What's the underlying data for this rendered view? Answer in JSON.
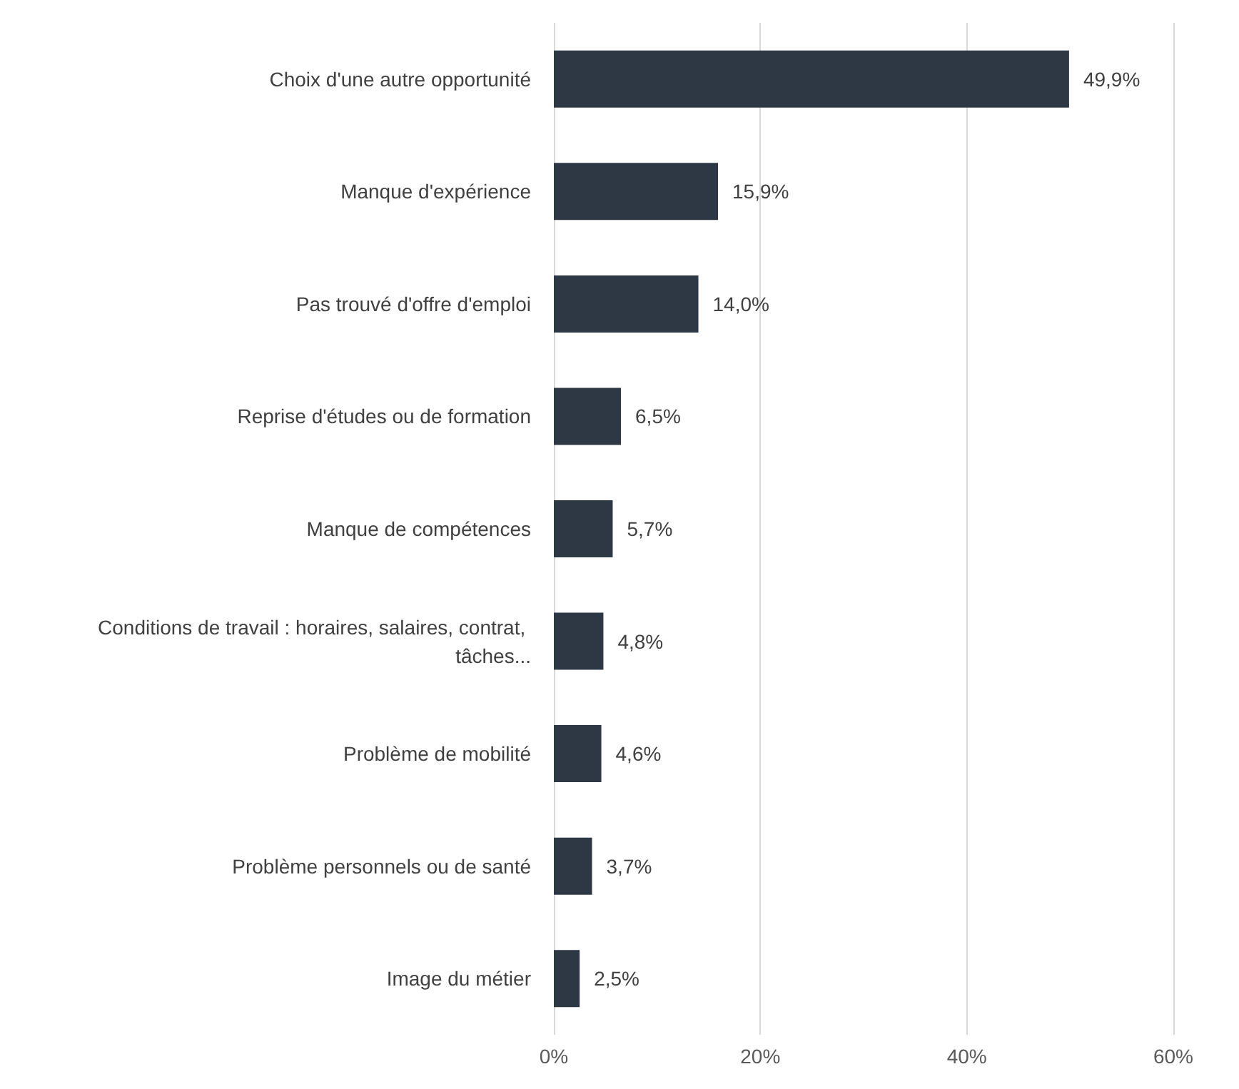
{
  "chart_data": {
    "type": "bar",
    "orientation": "horizontal",
    "categories": [
      "Choix d'une autre opportunité",
      "Manque d'expérience",
      "Pas trouvé d'offre d'emploi",
      "Reprise d'études ou de formation",
      "Manque de compétences",
      "Conditions de travail : horaires, salaires, contrat, tâches...",
      "Problème de mobilité",
      "Problème personnels ou de santé",
      "Image du métier"
    ],
    "values": [
      49.9,
      15.9,
      14.0,
      6.5,
      5.7,
      4.8,
      4.6,
      3.7,
      2.5
    ],
    "value_labels": [
      "49,9%",
      "15,9%",
      "14,0%",
      "6,5%",
      "5,7%",
      "4,8%",
      "4,6%",
      "3,7%",
      "2,5%"
    ],
    "color": "#2e3744",
    "xlim": [
      0,
      60
    ],
    "xticks": [
      {
        "value": 0,
        "label": "0%"
      },
      {
        "value": 20,
        "label": "20%"
      },
      {
        "value": 40,
        "label": "40%"
      },
      {
        "value": 60,
        "label": "60%"
      }
    ],
    "grid": "x"
  }
}
